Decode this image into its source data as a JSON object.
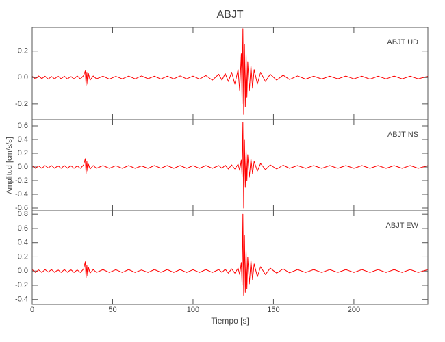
{
  "chart_data": [
    {
      "type": "line",
      "title": "ABJT",
      "label": "ABJT   UD",
      "color": "#ff0000",
      "xlim": [
        0,
        246
      ],
      "ylim": [
        -0.32,
        0.38
      ],
      "yticks": [
        -0.2,
        {
          "value": 0,
          "label": "0.0"
        },
        0.2
      ],
      "x": [
        0,
        2,
        4,
        6,
        8,
        10,
        12,
        14,
        16,
        18,
        20,
        22,
        24,
        26,
        28,
        30,
        32,
        33,
        33.5,
        34,
        34.5,
        35,
        36,
        38,
        40,
        44,
        48,
        52,
        56,
        60,
        64,
        68,
        72,
        76,
        80,
        84,
        88,
        92,
        96,
        100,
        104,
        108,
        112,
        116,
        118,
        120,
        122,
        124,
        126,
        128,
        129,
        130,
        130.5,
        131,
        131.5,
        132,
        132.5,
        133,
        133.5,
        134,
        135,
        136,
        137,
        138,
        140,
        142,
        145,
        148,
        152,
        156,
        160,
        165,
        170,
        175,
        180,
        185,
        190,
        195,
        200,
        205,
        210,
        215,
        220,
        225,
        230,
        235,
        240,
        246
      ],
      "values": [
        0.01,
        -0.01,
        0.012,
        -0.008,
        0.01,
        -0.012,
        0.008,
        -0.01,
        0.011,
        -0.009,
        0.01,
        -0.011,
        0.009,
        -0.01,
        0.012,
        -0.01,
        0.015,
        0.05,
        -0.06,
        0.04,
        -0.05,
        0.03,
        -0.02,
        0.012,
        -0.01,
        0.01,
        -0.012,
        0.009,
        -0.01,
        0.011,
        -0.01,
        0.012,
        -0.009,
        0.01,
        -0.011,
        0.01,
        -0.01,
        0.012,
        -0.01,
        0.011,
        -0.012,
        0.015,
        -0.02,
        0.025,
        -0.02,
        0.03,
        -0.03,
        0.04,
        -0.05,
        0.06,
        -0.1,
        0.18,
        -0.2,
        0.37,
        -0.28,
        0.25,
        -0.22,
        0.18,
        -0.15,
        0.12,
        -0.1,
        0.09,
        -0.08,
        0.06,
        -0.05,
        0.04,
        -0.03,
        0.025,
        -0.02,
        0.018,
        -0.015,
        0.012,
        -0.012,
        0.01,
        -0.011,
        0.01,
        -0.01,
        0.011,
        -0.01,
        0.01,
        -0.012,
        0.01,
        -0.01,
        0.011,
        -0.01,
        0.01,
        -0.01,
        0.01
      ]
    },
    {
      "type": "line",
      "y_label": "Amplitud [cm/s/s]",
      "label": "ABJT   NS",
      "color": "#ff0000",
      "xlim": [
        0,
        246
      ],
      "ylim": [
        -0.64,
        0.69
      ],
      "yticks": [
        -0.6,
        -0.4,
        -0.2,
        {
          "value": 0,
          "label": "0.0"
        },
        0.2,
        0.4,
        0.6
      ],
      "x": [
        0,
        2,
        4,
        6,
        8,
        10,
        12,
        14,
        16,
        18,
        20,
        22,
        24,
        26,
        28,
        30,
        32,
        33,
        33.5,
        34,
        34.5,
        35,
        36,
        38,
        40,
        44,
        48,
        52,
        56,
        60,
        64,
        68,
        72,
        76,
        80,
        84,
        88,
        92,
        96,
        100,
        104,
        108,
        112,
        116,
        118,
        120,
        122,
        124,
        126,
        128,
        129,
        130,
        130.5,
        131,
        131.5,
        132,
        132.5,
        133,
        133.5,
        134,
        135,
        136,
        137,
        138,
        140,
        142,
        145,
        148,
        152,
        156,
        160,
        165,
        170,
        175,
        180,
        185,
        190,
        195,
        200,
        205,
        210,
        215,
        220,
        225,
        230,
        235,
        240,
        246
      ],
      "values": [
        0.02,
        -0.02,
        0.015,
        -0.02,
        0.02,
        -0.015,
        0.02,
        -0.02,
        0.018,
        -0.02,
        0.02,
        -0.018,
        0.02,
        -0.02,
        0.015,
        -0.02,
        0.03,
        0.12,
        -0.1,
        0.08,
        -0.06,
        0.04,
        -0.03,
        0.02,
        -0.02,
        0.02,
        -0.02,
        0.018,
        -0.02,
        0.02,
        -0.02,
        0.015,
        -0.02,
        0.02,
        -0.018,
        0.02,
        -0.02,
        0.02,
        -0.02,
        0.018,
        -0.02,
        0.02,
        -0.02,
        0.02,
        -0.02,
        0.025,
        -0.03,
        0.03,
        -0.03,
        0.04,
        -0.05,
        0.1,
        -0.15,
        0.65,
        -0.6,
        0.4,
        -0.3,
        0.25,
        -0.2,
        0.18,
        -0.15,
        0.12,
        -0.1,
        0.08,
        -0.06,
        0.05,
        -0.04,
        0.03,
        -0.03,
        0.025,
        -0.02,
        0.02,
        -0.02,
        0.02,
        -0.02,
        0.02,
        -0.02,
        0.02,
        -0.02,
        0.02,
        -0.02,
        0.02,
        -0.02,
        0.02,
        -0.02,
        0.02,
        -0.02,
        0.02
      ]
    },
    {
      "type": "line",
      "x_label": "Tiempo [s]",
      "label": "ABJT   EW",
      "color": "#ff0000",
      "xlim": [
        0,
        246
      ],
      "xticks": [
        0,
        50,
        100,
        150,
        200
      ],
      "ylim": [
        -0.47,
        0.85
      ],
      "yticks": [
        -0.4,
        -0.2,
        {
          "value": 0,
          "label": "0.0"
        },
        0.2,
        0.4,
        0.6,
        0.8
      ],
      "x": [
        0,
        2,
        4,
        6,
        8,
        10,
        12,
        14,
        16,
        18,
        20,
        22,
        24,
        26,
        28,
        30,
        32,
        33,
        33.5,
        34,
        34.5,
        35,
        36,
        38,
        40,
        44,
        48,
        52,
        56,
        60,
        64,
        68,
        72,
        76,
        80,
        84,
        88,
        92,
        96,
        100,
        104,
        108,
        112,
        116,
        118,
        120,
        122,
        124,
        126,
        128,
        129,
        130,
        130.5,
        131,
        131.5,
        132,
        132.5,
        133,
        133.5,
        134,
        135,
        136,
        137,
        138,
        140,
        142,
        145,
        148,
        152,
        156,
        160,
        165,
        170,
        175,
        180,
        185,
        190,
        195,
        200,
        205,
        210,
        215,
        220,
        225,
        230,
        235,
        240,
        246
      ],
      "values": [
        0.02,
        -0.02,
        0.015,
        -0.02,
        0.02,
        -0.015,
        0.02,
        -0.02,
        0.018,
        -0.02,
        0.02,
        -0.018,
        0.02,
        -0.02,
        0.015,
        -0.02,
        0.03,
        0.13,
        -0.1,
        0.08,
        -0.07,
        0.05,
        -0.03,
        0.02,
        -0.02,
        0.02,
        -0.02,
        0.018,
        -0.02,
        0.02,
        -0.02,
        0.015,
        -0.02,
        0.02,
        -0.018,
        0.02,
        -0.02,
        0.02,
        -0.02,
        0.018,
        -0.02,
        0.02,
        -0.02,
        0.02,
        -0.02,
        0.025,
        -0.03,
        0.03,
        -0.03,
        0.04,
        -0.05,
        0.12,
        -0.2,
        0.8,
        -0.35,
        0.5,
        -0.3,
        0.3,
        -0.25,
        0.2,
        -0.18,
        0.15,
        -0.12,
        0.1,
        -0.08,
        0.06,
        -0.05,
        0.04,
        -0.03,
        0.03,
        -0.025,
        0.02,
        -0.02,
        0.02,
        -0.02,
        0.02,
        -0.02,
        0.02,
        -0.02,
        0.02,
        -0.02,
        0.02,
        -0.02,
        0.02,
        -0.02,
        0.02,
        -0.02,
        0.02
      ]
    }
  ]
}
